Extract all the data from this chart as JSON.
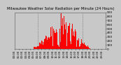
{
  "title": "Milwaukee Weather Solar Radiation per Minute (24 Hours)",
  "title_fontsize": 3.8,
  "bar_color": "#ff0000",
  "background_color": "#c8c8c8",
  "plot_bg_color": "#c8c8c8",
  "grid_color": "#aaaaaa",
  "ylim": [
    0,
    900
  ],
  "yticks": [
    0,
    100,
    200,
    300,
    400,
    500,
    600,
    700,
    800,
    900
  ],
  "ytick_fontsize": 3.2,
  "xtick_fontsize": 2.8,
  "num_minutes": 1440,
  "peak_minute": 750,
  "peak_value": 870,
  "sigma": 190,
  "sunrise": 300,
  "sunset": 1200
}
